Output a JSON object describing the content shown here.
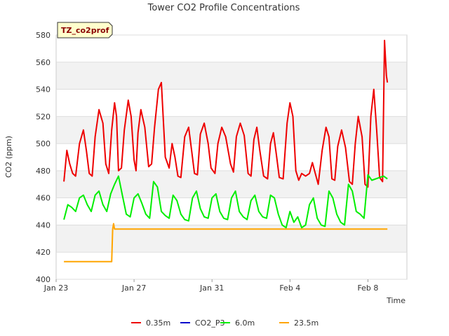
{
  "chart_data": {
    "type": "line",
    "title": "Tower CO2 Profile Concentrations",
    "badge": "TZ_co2prof",
    "xlabel": "Time",
    "ylabel": "CO2 (ppm)",
    "ylim": [
      400,
      580
    ],
    "yticks": [
      400,
      420,
      440,
      460,
      480,
      500,
      520,
      540,
      560,
      580
    ],
    "xlim": [
      0,
      18
    ],
    "xticks": [
      {
        "day": 0,
        "label": "Jan 23"
      },
      {
        "day": 4,
        "label": "Jan 27"
      },
      {
        "day": 8,
        "label": "Jan 31"
      },
      {
        "day": 12,
        "label": "Feb 4"
      },
      {
        "day": 16,
        "label": "Feb 8"
      }
    ],
    "grid": "horizontal bands",
    "legend_position": "bottom",
    "series": [
      {
        "name": "0.35m",
        "color": "#ee0000",
        "x": [
          0.4,
          0.55,
          0.7,
          0.85,
          1.0,
          1.2,
          1.4,
          1.55,
          1.7,
          1.85,
          2.0,
          2.2,
          2.4,
          2.55,
          2.7,
          2.85,
          3.0,
          3.1,
          3.2,
          3.35,
          3.5,
          3.7,
          3.85,
          4.0,
          4.1,
          4.2,
          4.35,
          4.55,
          4.75,
          4.9,
          5.05,
          5.25,
          5.4,
          5.6,
          5.8,
          5.95,
          6.1,
          6.25,
          6.4,
          6.6,
          6.8,
          6.95,
          7.1,
          7.25,
          7.4,
          7.6,
          7.8,
          7.95,
          8.15,
          8.3,
          8.5,
          8.7,
          8.95,
          9.1,
          9.25,
          9.45,
          9.65,
          9.85,
          10.0,
          10.15,
          10.3,
          10.45,
          10.65,
          10.85,
          11.0,
          11.15,
          11.3,
          11.45,
          11.65,
          11.85,
          12.0,
          12.15,
          12.3,
          12.45,
          12.6,
          12.8,
          13.0,
          13.15,
          13.3,
          13.45,
          13.65,
          13.85,
          14.0,
          14.15,
          14.3,
          14.45,
          14.65,
          14.85,
          15.05,
          15.2,
          15.35,
          15.5,
          15.7,
          15.85,
          16.0,
          16.15,
          16.3,
          16.45,
          16.6,
          16.75,
          16.85,
          16.95,
          17.0
        ],
        "y": [
          472,
          495,
          485,
          478,
          476,
          500,
          510,
          495,
          478,
          476,
          505,
          525,
          515,
          485,
          478,
          510,
          530,
          520,
          480,
          482,
          510,
          532,
          520,
          488,
          480,
          508,
          525,
          512,
          483,
          485,
          512,
          540,
          545,
          490,
          482,
          500,
          490,
          476,
          475,
          505,
          512,
          495,
          478,
          477,
          507,
          515,
          500,
          482,
          478,
          500,
          512,
          505,
          485,
          479,
          505,
          515,
          506,
          478,
          476,
          503,
          512,
          495,
          476,
          474,
          500,
          508,
          492,
          475,
          474,
          515,
          530,
          520,
          480,
          473,
          478,
          476,
          478,
          486,
          478,
          470,
          495,
          512,
          505,
          474,
          473,
          498,
          510,
          497,
          472,
          470,
          500,
          520,
          505,
          470,
          468,
          520,
          540,
          510,
          475,
          472,
          576,
          550,
          545
        ]
      },
      {
        "name": "CO2_P3",
        "color": "#0000cc",
        "x": [],
        "y": []
      },
      {
        "name": "6.0m",
        "color": "#00ee00",
        "x": [
          0.4,
          0.6,
          0.8,
          1.0,
          1.2,
          1.4,
          1.6,
          1.8,
          2.0,
          2.2,
          2.4,
          2.6,
          2.8,
          3.0,
          3.2,
          3.4,
          3.6,
          3.8,
          4.0,
          4.2,
          4.4,
          4.6,
          4.8,
          5.0,
          5.2,
          5.4,
          5.6,
          5.8,
          6.0,
          6.2,
          6.4,
          6.6,
          6.8,
          7.0,
          7.2,
          7.4,
          7.6,
          7.8,
          8.0,
          8.2,
          8.4,
          8.6,
          8.8,
          9.0,
          9.2,
          9.4,
          9.6,
          9.8,
          10.0,
          10.2,
          10.4,
          10.6,
          10.8,
          11.0,
          11.2,
          11.4,
          11.6,
          11.8,
          12.0,
          12.2,
          12.4,
          12.6,
          12.8,
          13.0,
          13.2,
          13.4,
          13.6,
          13.8,
          14.0,
          14.2,
          14.4,
          14.6,
          14.8,
          15.0,
          15.2,
          15.4,
          15.6,
          15.8,
          16.0,
          16.2,
          16.4,
          16.6,
          16.8,
          17.0
        ],
        "y": [
          444,
          455,
          453,
          450,
          460,
          462,
          455,
          450,
          462,
          465,
          455,
          450,
          463,
          470,
          476,
          462,
          448,
          446,
          460,
          463,
          456,
          448,
          445,
          472,
          468,
          450,
          447,
          445,
          462,
          458,
          448,
          444,
          443,
          460,
          465,
          452,
          446,
          445,
          460,
          463,
          450,
          445,
          444,
          460,
          465,
          450,
          446,
          444,
          458,
          462,
          450,
          446,
          445,
          462,
          460,
          448,
          440,
          438,
          450,
          442,
          446,
          438,
          440,
          455,
          460,
          445,
          440,
          439,
          465,
          460,
          448,
          442,
          440,
          470,
          465,
          450,
          448,
          445,
          477,
          473,
          474,
          475,
          476,
          474
        ]
      },
      {
        "name": "23.5m",
        "color": "#ffa500",
        "x": [
          0.4,
          2.85,
          2.9,
          2.95,
          3.0,
          3.05,
          3.2,
          17.0
        ],
        "y": [
          413,
          413,
          437,
          441,
          437,
          437,
          437,
          437
        ]
      }
    ]
  }
}
